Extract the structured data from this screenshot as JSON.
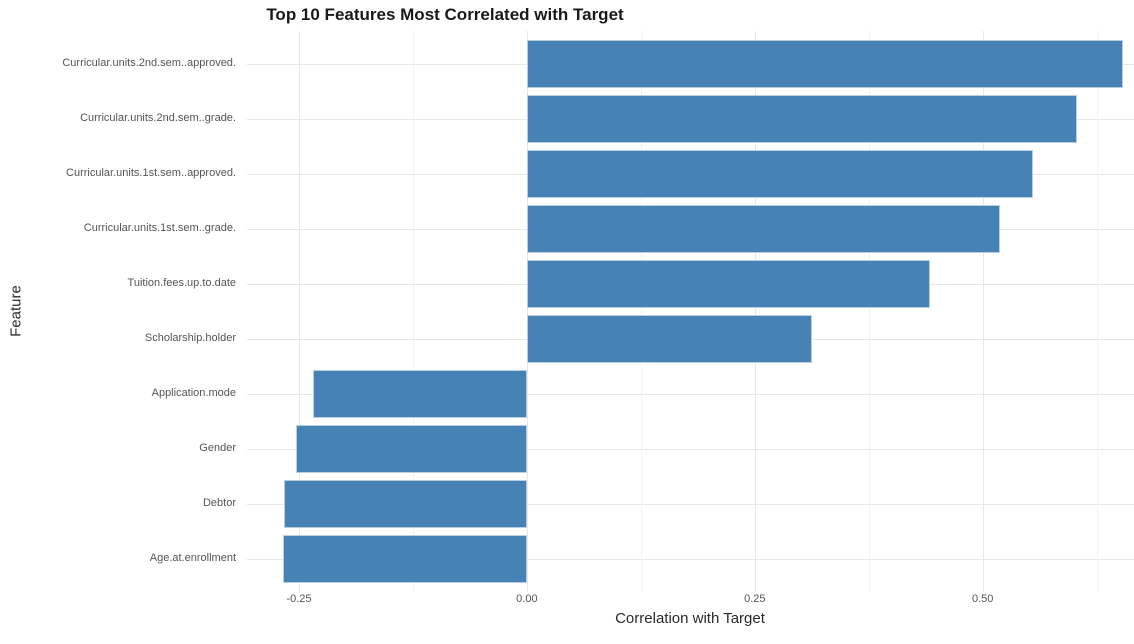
{
  "chart_data": {
    "type": "bar",
    "orientation": "horizontal",
    "title": "Top 10 Features Most Correlated with Target",
    "xlabel": "Correlation with Target",
    "ylabel": "Feature",
    "categories": [
      "Curricular.units.2nd.sem..approved.",
      "Curricular.units.2nd.sem..grade.",
      "Curricular.units.1st.sem..approved.",
      "Curricular.units.1st.sem..grade.",
      "Tuition.fees.up.to.date",
      "Scholarship.holder",
      "Application.mode",
      "Gender",
      "Debtor",
      "Age.at.enrollment"
    ],
    "values": [
      0.654,
      0.603,
      0.555,
      0.519,
      0.442,
      0.313,
      -0.235,
      -0.253,
      -0.267,
      -0.268
    ],
    "xlim": [
      -0.307,
      0.666
    ],
    "x_ticks": [
      -0.25,
      0.0,
      0.25,
      0.5
    ],
    "x_tick_labels": [
      "-0.25",
      "0.00",
      "0.25",
      "0.50"
    ],
    "x_minor_ticks": [
      -0.125,
      0.125,
      0.375,
      0.625
    ],
    "grid": true,
    "legend": false,
    "colors": {
      "bar_fill": "#4682B4",
      "bar_edge": "#b9d0e4",
      "grid_major": "#e7e7e7",
      "grid_minor": "#f2f2f2",
      "title_text": "#1a1a1a",
      "tick_text": "#555555",
      "axis_title_text": "#2b2b2b",
      "background": "#ffffff"
    }
  }
}
